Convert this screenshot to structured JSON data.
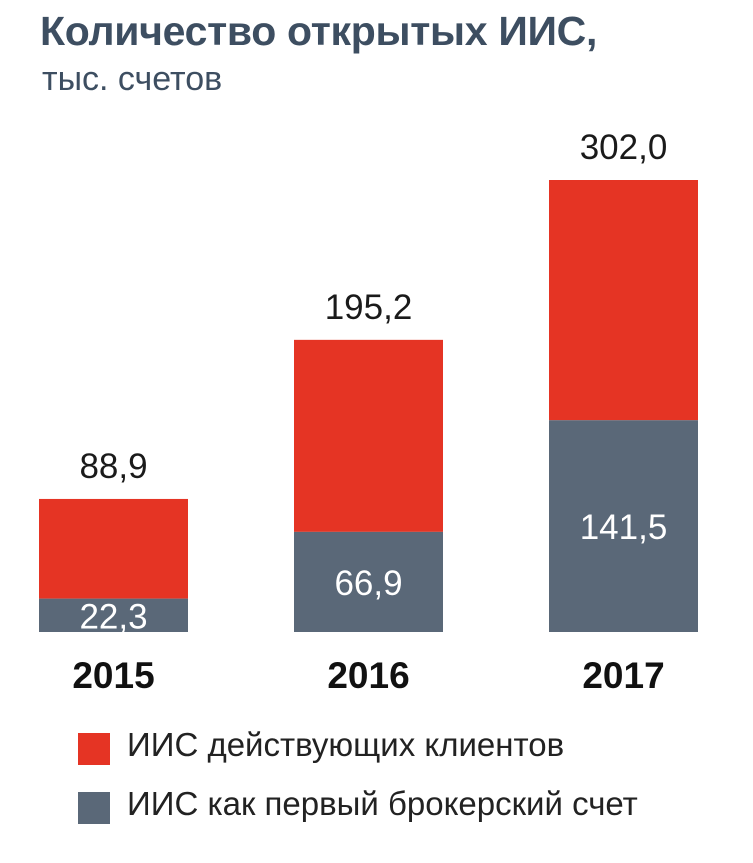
{
  "title": "Количество открытых ИИС,",
  "subtitle": "тыс. счетов",
  "colors": {
    "active_clients": "#e53424",
    "first_account": "#5a6878",
    "title_text": "#3d4e61"
  },
  "chart_data": {
    "type": "bar",
    "stacked": true,
    "categories": [
      "2015",
      "2016",
      "2017"
    ],
    "series": [
      {
        "name": "ИИС как первый брокерский счет",
        "values": [
          22.3,
          66.9,
          141.5
        ],
        "labels": [
          "22,3",
          "66,9",
          "141,5"
        ],
        "color": "#5a6878"
      },
      {
        "name": "ИИС действующих клиентов",
        "values": [
          66.6,
          128.3,
          160.5
        ],
        "color": "#e53424"
      }
    ],
    "totals": [
      88.9,
      195.2,
      302.0
    ],
    "total_labels": [
      "88,9",
      "195,2",
      "302,0"
    ],
    "ylim": [
      0,
      302.0
    ],
    "grid": false,
    "legend_position": "bottom"
  },
  "legend": [
    {
      "label": "ИИС действующих клиентов",
      "color": "#e53424"
    },
    {
      "label": "ИИС как первый брокерский счет",
      "color": "#5a6878"
    }
  ]
}
